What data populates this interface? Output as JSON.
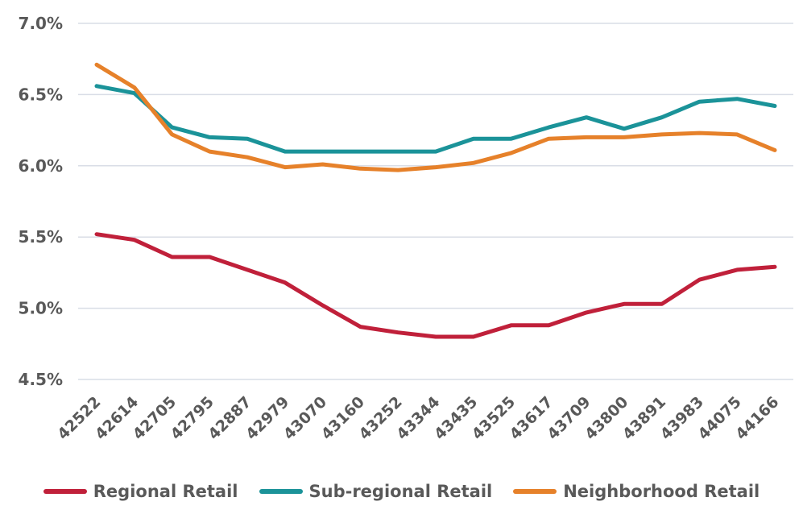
{
  "chart_data": {
    "type": "line",
    "title": "",
    "xlabel": "",
    "ylabel": "",
    "x": [
      "42522",
      "42614",
      "42705",
      "42795",
      "42887",
      "42979",
      "43070",
      "43160",
      "43252",
      "43344",
      "43435",
      "43525",
      "43617",
      "43709",
      "43800",
      "43891",
      "43983",
      "44075",
      "44166"
    ],
    "ylim": [
      4.5,
      7.0
    ],
    "y_ticks": [
      4.5,
      5.0,
      5.5,
      6.0,
      6.5,
      7.0
    ],
    "y_tick_labels": [
      "4.5%",
      "5.0%",
      "5.5%",
      "6.0%",
      "6.5%",
      "7.0%"
    ],
    "grid": "horizontal",
    "legend_position": "bottom",
    "series": [
      {
        "name": "Regional Retail",
        "color": "#c0203a",
        "values": [
          5.52,
          5.48,
          5.36,
          5.36,
          5.27,
          5.18,
          5.02,
          4.87,
          4.83,
          4.8,
          4.8,
          4.88,
          4.88,
          4.97,
          5.03,
          5.03,
          5.2,
          5.27,
          5.29
        ]
      },
      {
        "name": "Sub-regional Retail",
        "color": "#1b9399",
        "values": [
          6.56,
          6.51,
          6.27,
          6.2,
          6.19,
          6.1,
          6.1,
          6.1,
          6.1,
          6.1,
          6.19,
          6.19,
          6.27,
          6.34,
          6.26,
          6.34,
          6.45,
          6.47,
          6.42
        ]
      },
      {
        "name": "Neighborhood Retail",
        "color": "#e6812a",
        "values": [
          6.71,
          6.55,
          6.22,
          6.1,
          6.06,
          5.99,
          6.01,
          5.98,
          5.97,
          5.99,
          6.02,
          6.09,
          6.19,
          6.2,
          6.2,
          6.22,
          6.23,
          6.22,
          6.11
        ]
      }
    ]
  }
}
